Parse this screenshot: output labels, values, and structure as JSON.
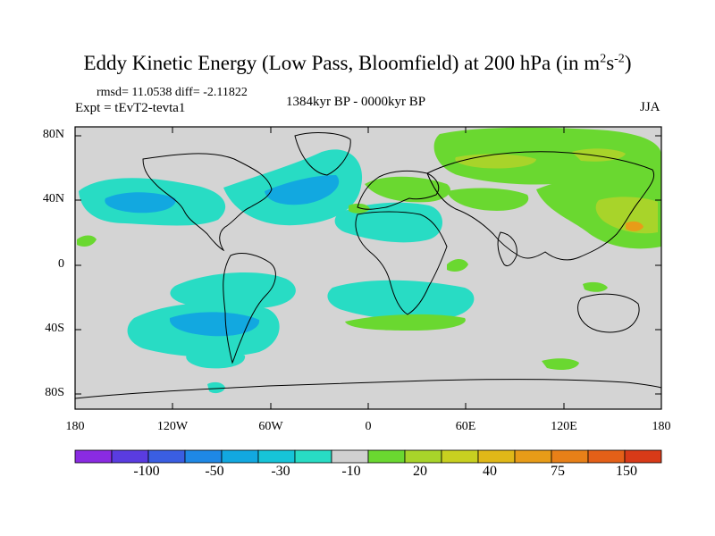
{
  "title": {
    "main": "Eddy Kinetic Energy (Low Pass, Bloomfield) at 200 hPa (in m",
    "sup1": "2",
    "mid": "s",
    "sup2": "-2",
    "end": ")"
  },
  "stats": "rmsd= 11.0538 diff= -2.11822",
  "experiment": "Expt = tEvT2-tevta1",
  "period": "1384kyr BP - 0000kyr BP",
  "season": "JJA",
  "axes": {
    "y_ticks": [
      "80N",
      "40N",
      "0",
      "40S",
      "80S"
    ],
    "x_ticks": [
      "180",
      "120W",
      "60W",
      "0",
      "60E",
      "120E",
      "180"
    ]
  },
  "colorbar": {
    "colors": [
      "#8a2be2",
      "#5a3ce0",
      "#3a5ee2",
      "#1e88e6",
      "#12a8e0",
      "#16c4d8",
      "#28dcc4",
      "#d0d0d0",
      "#6ad830",
      "#a8d42a",
      "#c8d020",
      "#e0b818",
      "#e89c18",
      "#e88018",
      "#e46018",
      "#d83a18"
    ],
    "labels": [
      "-100",
      "-50",
      "-30",
      "-10",
      "20",
      "40",
      "75",
      "150"
    ]
  },
  "map_colors": {
    "background": "#d4d4d4",
    "cyan": "#28dcc4",
    "cyan_deep": "#16c4d8",
    "blue": "#12a8e0",
    "green": "#6ad830",
    "yellowgreen": "#a8d42a",
    "orange": "#e89c18",
    "coast": "#000000"
  }
}
